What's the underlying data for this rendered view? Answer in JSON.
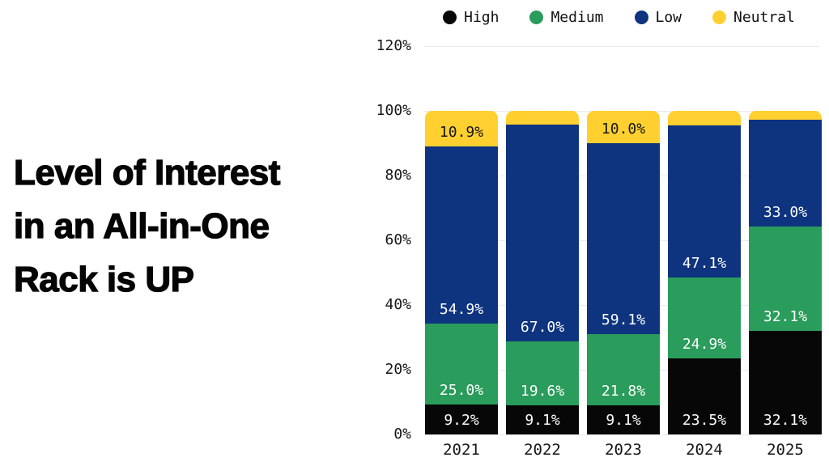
{
  "title": {
    "lines": [
      "Level of Interest",
      "in an All-in-One",
      "Rack is UP"
    ]
  },
  "colors": {
    "high": "#070707",
    "medium": "#2A9C5B",
    "low": "#0E3480",
    "neutral": "#FFD02F",
    "gridline": "#E9E9E9",
    "axis_text": "#161616"
  },
  "chart_data": {
    "type": "bar",
    "stacked": true,
    "title": "Level of Interest in an All-in-One Rack is UP",
    "categories": [
      "2021",
      "2022",
      "2023",
      "2024",
      "2025"
    ],
    "series": [
      {
        "name": "High",
        "color": "#070707",
        "label_color": "#FFFFFF",
        "values": [
          9.2,
          9.1,
          9.1,
          23.5,
          32.1
        ],
        "labels": [
          "9.2%",
          "9.1%",
          "9.1%",
          "23.5%",
          "32.1%"
        ]
      },
      {
        "name": "Medium",
        "color": "#2A9C5B",
        "label_color": "#FFFFFF",
        "values": [
          25.0,
          19.6,
          21.8,
          24.9,
          32.1
        ],
        "labels": [
          "25.0%",
          "19.6%",
          "21.8%",
          "24.9%",
          "32.1%"
        ]
      },
      {
        "name": "Low",
        "color": "#0E3480",
        "label_color": "#FFFFFF",
        "values": [
          54.9,
          67.0,
          59.1,
          47.1,
          33.0
        ],
        "labels": [
          "54.9%",
          "67.0%",
          "59.1%",
          "47.1%",
          "33.0%"
        ]
      },
      {
        "name": "Neutral",
        "color": "#FFD02F",
        "label_color": "#151515",
        "values": [
          10.9,
          4.3,
          10.0,
          4.5,
          2.8
        ],
        "labels": [
          "10.9%",
          null,
          "10.0%",
          null,
          null
        ]
      }
    ],
    "xlabel": "",
    "ylabel": "",
    "ylim": [
      0,
      120
    ],
    "y_ticks": [
      "0%",
      "20%",
      "40%",
      "60%",
      "80%",
      "100%",
      "120%"
    ],
    "grid": true,
    "legend_position": "top",
    "legend": [
      "High",
      "Medium",
      "Low",
      "Neutral"
    ]
  }
}
